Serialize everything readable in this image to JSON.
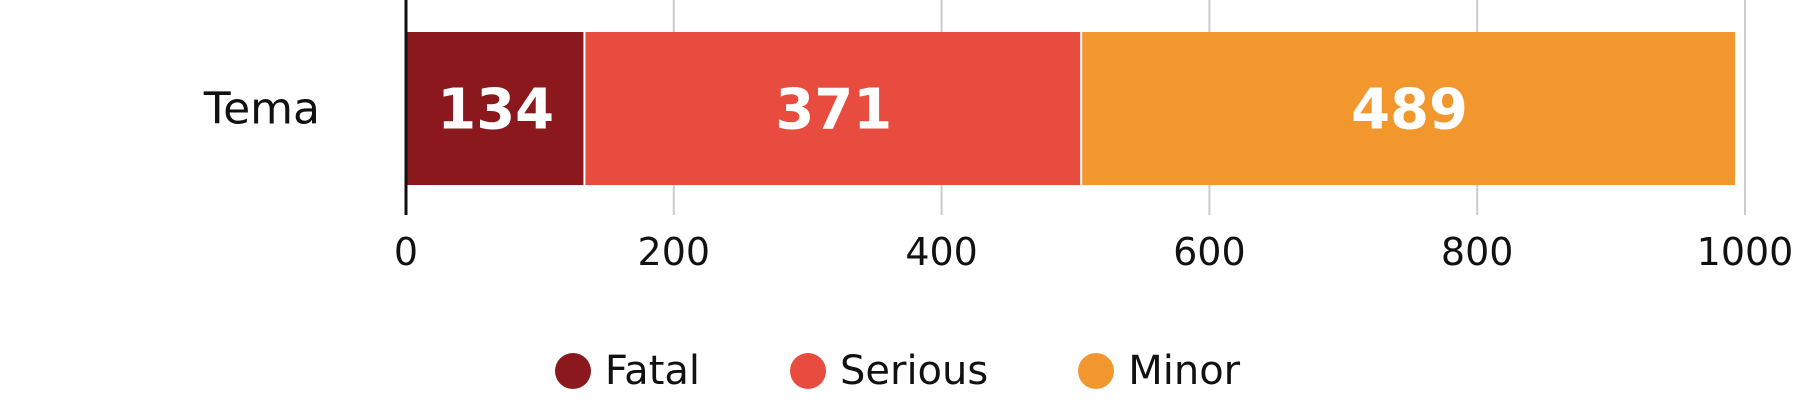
{
  "chart_data": {
    "type": "bar",
    "orientation": "horizontal",
    "stacked": true,
    "categories": [
      "Tema"
    ],
    "series": [
      {
        "name": "Fatal",
        "values": [
          134
        ],
        "color": "#8B181C"
      },
      {
        "name": "Serious",
        "values": [
          371
        ],
        "color": "#E84C3F"
      },
      {
        "name": "Minor",
        "values": [
          489
        ],
        "color": "#F2962E"
      }
    ],
    "xlim": [
      0,
      1000
    ],
    "xticks": [
      "0",
      "200",
      "400",
      "600",
      "800",
      "1000"
    ],
    "grid": true,
    "legend_position": "bottom"
  }
}
